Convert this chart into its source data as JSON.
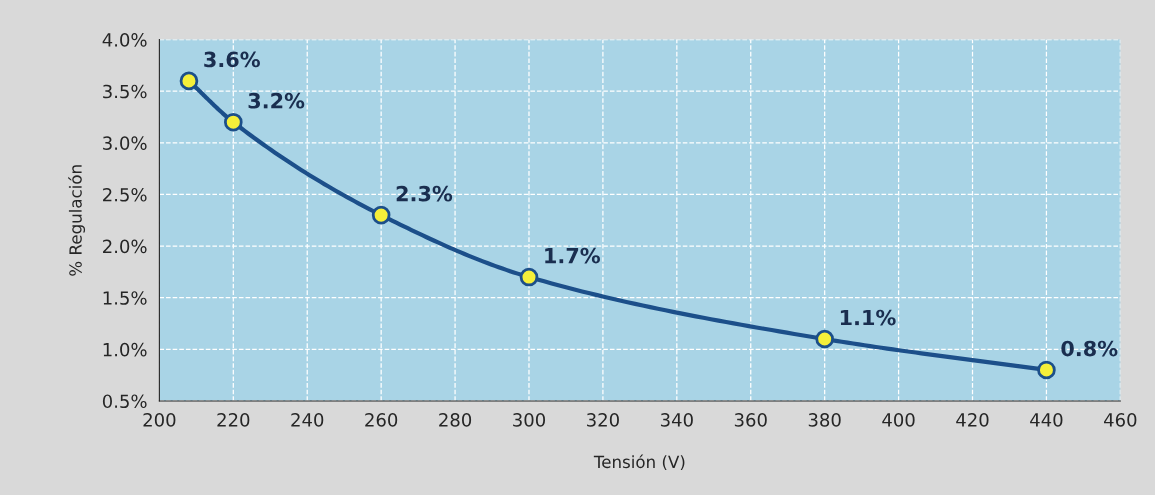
{
  "chart_data": {
    "type": "line",
    "xlabel": "Tensión (V)",
    "ylabel": "% Regulación",
    "x": [
      208,
      220,
      260,
      300,
      380,
      440
    ],
    "series": [
      {
        "color": "#1c4f8a",
        "values": [
          3.6,
          3.2,
          2.3,
          1.7,
          1.1,
          0.8
        ],
        "value_labels": [
          "3.6%",
          "3.2%",
          "2.3%",
          "1.7%",
          "1.1%",
          "0.8%"
        ]
      }
    ],
    "xlim": [
      200,
      460
    ],
    "xticks": [
      200,
      220,
      240,
      260,
      280,
      300,
      320,
      340,
      360,
      380,
      400,
      420,
      440,
      460
    ],
    "ylim": [
      0.5,
      4.0
    ],
    "yticks": [
      {
        "value": 0.5,
        "label": "0.5%"
      },
      {
        "value": 1.0,
        "label": "1.0%"
      },
      {
        "value": 1.5,
        "label": "1.5%"
      },
      {
        "value": 2.0,
        "label": "2.0%"
      },
      {
        "value": 2.5,
        "label": "2.5%"
      },
      {
        "value": 3.0,
        "label": "3.0%"
      },
      {
        "value": 3.5,
        "label": "3.5%"
      },
      {
        "value": 4.0,
        "label": "4.0%"
      }
    ],
    "grid": true,
    "marker": "circle",
    "line_style": "solid",
    "legend": false
  }
}
